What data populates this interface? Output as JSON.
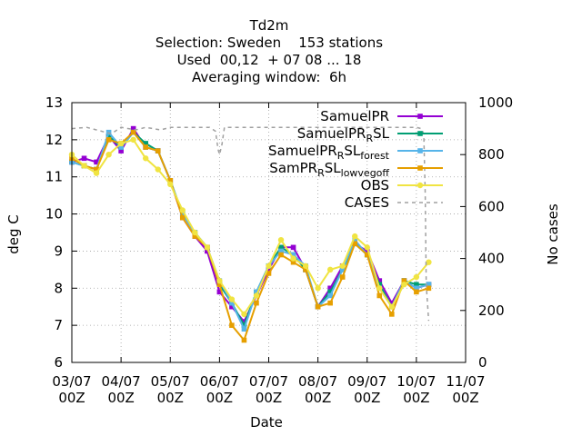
{
  "chart_data": {
    "type": "line",
    "title_lines": [
      "Td2m",
      "Selection: Sweden    153 stations",
      "Used  00,12  + 07 08 ... 18",
      "Averaging window:  6h"
    ],
    "xlabel": "Date",
    "ylabel": "deg C",
    "y2label": "No cases",
    "ylim": [
      6,
      13
    ],
    "yticks": [
      "6",
      "7",
      "8",
      "9",
      "10",
      "11",
      "12",
      "13"
    ],
    "y2lim": [
      0,
      1000
    ],
    "y2ticks": [
      "0",
      "200",
      "400",
      "600",
      "800",
      "1000"
    ],
    "xlim": [
      0,
      8
    ],
    "xticks": [
      {
        "date": "03/07",
        "hour": "00Z"
      },
      {
        "date": "04/07",
        "hour": "00Z"
      },
      {
        "date": "05/07",
        "hour": "00Z"
      },
      {
        "date": "06/07",
        "hour": "00Z"
      },
      {
        "date": "07/07",
        "hour": "00Z"
      },
      {
        "date": "08/07",
        "hour": "00Z"
      },
      {
        "date": "09/07",
        "hour": "00Z"
      },
      {
        "date": "10/07",
        "hour": "00Z"
      },
      {
        "date": "11/07",
        "hour": "00Z"
      }
    ],
    "grid": true,
    "legend_position": "top-right",
    "x": [
      0,
      0.25,
      0.5,
      0.75,
      1.0,
      1.25,
      1.5,
      1.75,
      2.0,
      2.25,
      2.5,
      2.75,
      3.0,
      3.25,
      3.5,
      3.75,
      4.0,
      4.25,
      4.5,
      4.75,
      5.0,
      5.25,
      5.5,
      5.75,
      6.0,
      6.25,
      6.5,
      6.75,
      7.0,
      7.25
    ],
    "series": [
      {
        "name": "SamuelPR",
        "name_parts": [
          {
            "t": "SamuelPR"
          }
        ],
        "color": "#9400d3",
        "marker": "filled-square",
        "axis": "y1",
        "values": [
          11.4,
          11.5,
          11.4,
          12.1,
          11.7,
          12.3,
          11.8,
          11.7,
          10.9,
          9.9,
          9.4,
          9.0,
          7.9,
          7.5,
          7.1,
          7.8,
          8.5,
          9.1,
          9.1,
          8.5,
          7.5,
          8.0,
          8.6,
          9.2,
          9.0,
          8.2,
          7.6,
          8.2,
          8.0,
          8.1
        ]
      },
      {
        "name": "SamuelPR_R SL",
        "name_parts": [
          {
            "t": "SamuelPR"
          },
          {
            "t": "R",
            "sub": true
          },
          {
            "t": "SL"
          }
        ],
        "color": "#009e73",
        "marker": "filled-square",
        "axis": "y1",
        "values": [
          11.4,
          11.3,
          11.2,
          12.1,
          11.8,
          12.2,
          11.9,
          11.7,
          10.9,
          10.0,
          9.5,
          9.1,
          8.1,
          7.6,
          7.0,
          7.9,
          8.6,
          9.1,
          8.9,
          8.5,
          7.5,
          7.9,
          8.5,
          9.2,
          8.9,
          8.1,
          7.5,
          8.2,
          8.1,
          8.1
        ]
      },
      {
        "name": "SamuelPR_R SL_forest",
        "name_parts": [
          {
            "t": "SamuelPR"
          },
          {
            "t": "R",
            "sub": true
          },
          {
            "t": "SL"
          },
          {
            "t": "forest",
            "sub": true
          }
        ],
        "color": "#56b4e9",
        "marker": "filled-square",
        "axis": "y1",
        "values": [
          11.4,
          11.3,
          11.2,
          12.2,
          11.8,
          12.2,
          11.8,
          11.7,
          10.9,
          10.0,
          9.5,
          9.1,
          8.2,
          7.6,
          6.9,
          7.9,
          8.6,
          9.0,
          8.9,
          8.6,
          7.5,
          7.8,
          8.5,
          9.3,
          8.9,
          8.0,
          7.5,
          8.2,
          8.0,
          8.1
        ]
      },
      {
        "name": "SamPR_R SL_lowvegoff",
        "name_parts": [
          {
            "t": "SamPR"
          },
          {
            "t": "R",
            "sub": true
          },
          {
            "t": "SL"
          },
          {
            "t": "lowvegoff",
            "sub": true
          }
        ],
        "color": "#e69f00",
        "marker": "filled-square",
        "axis": "y1",
        "values": [
          11.5,
          11.3,
          11.2,
          12.0,
          11.9,
          12.2,
          11.8,
          11.7,
          10.9,
          9.9,
          9.4,
          9.1,
          8.1,
          7.0,
          6.6,
          7.6,
          8.4,
          8.9,
          8.7,
          8.5,
          7.5,
          7.6,
          8.3,
          9.2,
          8.9,
          7.8,
          7.3,
          8.2,
          7.9,
          8.0
        ]
      },
      {
        "name": "OBS",
        "name_parts": [
          {
            "t": "OBS"
          }
        ],
        "color": "#f0e442",
        "marker": "filled-circle",
        "axis": "y1",
        "values": [
          11.6,
          11.3,
          11.1,
          11.6,
          11.9,
          12.0,
          11.5,
          11.2,
          10.8,
          10.1,
          9.5,
          9.1,
          8.2,
          7.7,
          7.3,
          7.8,
          8.6,
          9.3,
          8.8,
          8.6,
          8.0,
          8.5,
          8.6,
          9.4,
          9.1,
          8.0,
          7.5,
          8.1,
          8.3,
          8.7
        ]
      },
      {
        "name": "CASES",
        "name_parts": [
          {
            "t": "CASES"
          }
        ],
        "color": "#a0a0a0",
        "dashed": true,
        "axis": "y2",
        "x": [
          0,
          0.3,
          0.5,
          0.8,
          1.0,
          1.3,
          1.5,
          1.8,
          2.0,
          2.4,
          2.6,
          2.8,
          2.92,
          2.97,
          3.0,
          3.05,
          3.1,
          3.2,
          3.5,
          4.0,
          4.5,
          5.0,
          5.5,
          6.0,
          6.5,
          7.0,
          7.1,
          7.15,
          7.18,
          7.2,
          7.25
        ],
        "values": [
          900,
          905,
          895,
          880,
          905,
          895,
          905,
          895,
          905,
          905,
          905,
          905,
          890,
          820,
          800,
          840,
          905,
          905,
          905,
          905,
          905,
          905,
          905,
          905,
          905,
          905,
          900,
          880,
          650,
          300,
          160
        ]
      }
    ]
  }
}
